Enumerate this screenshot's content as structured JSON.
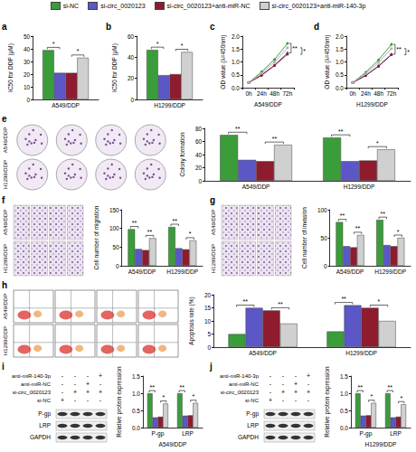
{
  "chart_data": [
    {
      "panel": "a",
      "type": "bar",
      "categories": [
        "A549/DDP"
      ],
      "ylabel": "IC50 for DDP (μM)",
      "ylim": [
        0,
        50
      ],
      "yticks": [
        0,
        10,
        20,
        30,
        40,
        50
      ],
      "grid": false,
      "series": [
        {
          "name": "si-NC",
          "color": "#3a9d3a",
          "values": [
            39
          ]
        },
        {
          "name": "si-circ_0020123",
          "color": "#5b57c6",
          "values": [
            21
          ]
        },
        {
          "name": "si-circ_0020123+anti-miR-NC",
          "color": "#8e1b2e",
          "values": [
            21
          ]
        },
        {
          "name": "si-circ_0020123+anti-miR-140-3p",
          "color": "#d0d0d0",
          "values": [
            33
          ]
        }
      ],
      "annotations": [
        {
          "text": "*",
          "category": "A549/DDP",
          "series": [
            "si-NC",
            "si-circ_0020123"
          ]
        },
        {
          "text": "*",
          "category": "A549/DDP",
          "series": [
            "si-circ_0020123+anti-miR-NC",
            "si-circ_0020123+anti-miR-140-3p"
          ]
        }
      ]
    },
    {
      "panel": "b",
      "type": "bar",
      "categories": [
        "H1299/DDP"
      ],
      "ylabel": "IC50 for DDP (μM)",
      "ylim": [
        0,
        60
      ],
      "yticks": [
        0,
        20,
        40,
        60
      ],
      "grid": false,
      "series": [
        {
          "name": "si-NC",
          "color": "#3a9d3a",
          "values": [
            47
          ]
        },
        {
          "name": "si-circ_0020123",
          "color": "#5b57c6",
          "values": [
            23
          ]
        },
        {
          "name": "si-circ_0020123+anti-miR-NC",
          "color": "#8e1b2e",
          "values": [
            24
          ]
        },
        {
          "name": "si-circ_0020123+anti-miR-140-3p",
          "color": "#d0d0d0",
          "values": [
            45
          ]
        }
      ],
      "annotations": [
        {
          "text": "*",
          "category": "H1299/DDP",
          "series": [
            "si-NC",
            "si-circ_0020123"
          ]
        },
        {
          "text": "*",
          "category": "H1299/DDP",
          "series": [
            "si-circ_0020123+anti-miR-NC",
            "si-circ_0020123+anti-miR-140-3p"
          ]
        }
      ]
    },
    {
      "panel": "c",
      "type": "line",
      "marker": "circle",
      "categories": [
        "0h",
        "24h",
        "48h",
        "72h"
      ],
      "xlabel": "A549/DDP",
      "ylabel": "OD value (λ=450nm)",
      "ylim": [
        0,
        2
      ],
      "yticks": [
        {
          "value": 0,
          "label": "0.0"
        },
        {
          "value": 0.5,
          "label": "0.5"
        },
        {
          "value": 1,
          "label": "1.0"
        },
        {
          "value": 1.5,
          "label": "1.5"
        },
        {
          "value": 2,
          "label": "2.0"
        }
      ],
      "grid": false,
      "series": [
        {
          "name": "si-NC",
          "color": "#3a9d3a",
          "values": [
            0.2,
            0.62,
            1.1,
            1.72
          ]
        },
        {
          "name": "si-circ_0020123",
          "color": "#5b57c6",
          "values": [
            0.2,
            0.5,
            0.88,
            1.35
          ]
        },
        {
          "name": "si-circ_0020123+anti-miR-NC",
          "color": "#8e1b2e",
          "values": [
            0.2,
            0.48,
            0.86,
            1.3
          ]
        },
        {
          "name": "si-circ_0020123+anti-miR-140-3p",
          "color": "#b0b0b0",
          "values": [
            0.2,
            0.56,
            1.0,
            1.55
          ]
        }
      ],
      "annotations": [
        {
          "text": "**",
          "category": "72h",
          "series": [
            "si-NC",
            "si-circ_0020123"
          ]
        },
        {
          "text": "*",
          "category": "72h",
          "series": [
            "si-circ_0020123+anti-miR-NC",
            "si-circ_0020123+anti-miR-140-3p"
          ]
        }
      ]
    },
    {
      "panel": "d",
      "type": "line",
      "marker": "circle",
      "categories": [
        "0h",
        "24h",
        "48h",
        "72h"
      ],
      "xlabel": "H1299/DDP",
      "ylabel": "OD value (λ=450nm)",
      "ylim": [
        0,
        2
      ],
      "yticks": [
        {
          "value": 0,
          "label": "0.0"
        },
        {
          "value": 0.5,
          "label": "0.5"
        },
        {
          "value": 1,
          "label": "1.0"
        },
        {
          "value": 1.5,
          "label": "1.5"
        },
        {
          "value": 2,
          "label": "2.0"
        }
      ],
      "grid": false,
      "series": [
        {
          "name": "si-NC",
          "color": "#3a9d3a",
          "values": [
            0.2,
            0.6,
            1.08,
            1.68
          ]
        },
        {
          "name": "si-circ_0020123",
          "color": "#5b57c6",
          "values": [
            0.2,
            0.48,
            0.85,
            1.3
          ]
        },
        {
          "name": "si-circ_0020123+anti-miR-NC",
          "color": "#8e1b2e",
          "values": [
            0.2,
            0.47,
            0.83,
            1.28
          ]
        },
        {
          "name": "si-circ_0020123+anti-miR-140-3p",
          "color": "#b0b0b0",
          "values": [
            0.2,
            0.55,
            0.98,
            1.52
          ]
        }
      ],
      "annotations": [
        {
          "text": "**",
          "category": "72h",
          "series": [
            "si-NC",
            "si-circ_0020123"
          ]
        },
        {
          "text": "*",
          "category": "72h",
          "series": [
            "si-circ_0020123+anti-miR-NC",
            "si-circ_0020123+anti-miR-140-3p"
          ]
        }
      ]
    },
    {
      "panel": "e",
      "type": "bar",
      "categories": [
        "A549/DDP",
        "H1299/DDP"
      ],
      "ylabel": "Colony formation",
      "ylim": [
        0,
        80
      ],
      "yticks": [
        0,
        20,
        40,
        60,
        80
      ],
      "grid": false,
      "series": [
        {
          "name": "si-NC",
          "color": "#3a9d3a",
          "values": [
            70,
            66
          ]
        },
        {
          "name": "si-circ_0020123",
          "color": "#5b57c6",
          "values": [
            32,
            30
          ]
        },
        {
          "name": "si-circ_0020123+anti-miR-NC",
          "color": "#8e1b2e",
          "values": [
            30,
            31
          ]
        },
        {
          "name": "si-circ_0020123+anti-miR-140-3p",
          "color": "#d0d0d0",
          "values": [
            55,
            48
          ]
        }
      ],
      "annotations": [
        {
          "text": "**",
          "category": "A549/DDP",
          "series": [
            "si-NC",
            "si-circ_0020123"
          ]
        },
        {
          "text": "**",
          "category": "A549/DDP",
          "series": [
            "si-circ_0020123+anti-miR-NC",
            "si-circ_0020123+anti-miR-140-3p"
          ]
        },
        {
          "text": "**",
          "category": "H1299/DDP",
          "series": [
            "si-NC",
            "si-circ_0020123"
          ]
        },
        {
          "text": "*",
          "category": "H1299/DDP",
          "series": [
            "si-circ_0020123+anti-miR-NC",
            "si-circ_0020123+anti-miR-140-3p"
          ]
        }
      ]
    },
    {
      "panel": "f",
      "type": "bar",
      "categories": [
        "A549/DDP",
        "H1299/DDP"
      ],
      "ylabel": "Cell number of migration",
      "ylim": [
        0,
        150
      ],
      "yticks": [
        0,
        50,
        100,
        150
      ],
      "grid": false,
      "series": [
        {
          "name": "si-NC",
          "color": "#3a9d3a",
          "values": [
            98,
            104
          ]
        },
        {
          "name": "si-circ_0020123",
          "color": "#5b57c6",
          "values": [
            45,
            47
          ]
        },
        {
          "name": "si-circ_0020123+anti-miR-NC",
          "color": "#8e1b2e",
          "values": [
            42,
            44
          ]
        },
        {
          "name": "si-circ_0020123+anti-miR-140-3p",
          "color": "#d0d0d0",
          "values": [
            74,
            68
          ]
        }
      ],
      "annotations": [
        {
          "text": "**",
          "category": "A549/DDP",
          "series": [
            "si-NC",
            "si-circ_0020123"
          ]
        },
        {
          "text": "**",
          "category": "A549/DDP",
          "series": [
            "si-circ_0020123+anti-miR-NC",
            "si-circ_0020123+anti-miR-140-3p"
          ]
        },
        {
          "text": "**",
          "category": "H1299/DDP",
          "series": [
            "si-NC",
            "si-circ_0020123"
          ]
        },
        {
          "text": "*",
          "category": "H1299/DDP",
          "series": [
            "si-circ_0020123+anti-miR-NC",
            "si-circ_0020123+anti-miR-140-3p"
          ]
        }
      ]
    },
    {
      "panel": "g",
      "type": "bar",
      "categories": [
        "A549/DDP",
        "H1299/DDP"
      ],
      "ylabel": "Cell number of invasion",
      "ylim": [
        0,
        100
      ],
      "yticks": [
        0,
        50,
        100
      ],
      "grid": false,
      "series": [
        {
          "name": "si-NC",
          "color": "#3a9d3a",
          "values": [
            78,
            82
          ]
        },
        {
          "name": "si-circ_0020123",
          "color": "#5b57c6",
          "values": [
            35,
            37
          ]
        },
        {
          "name": "si-circ_0020123+anti-miR-NC",
          "color": "#8e1b2e",
          "values": [
            33,
            35
          ]
        },
        {
          "name": "si-circ_0020123+anti-miR-140-3p",
          "color": "#d0d0d0",
          "values": [
            55,
            50
          ]
        }
      ],
      "annotations": [
        {
          "text": "**",
          "category": "A549/DDP",
          "series": [
            "si-NC",
            "si-circ_0020123"
          ]
        },
        {
          "text": "**",
          "category": "A549/DDP",
          "series": [
            "si-circ_0020123+anti-miR-NC",
            "si-circ_0020123+anti-miR-140-3p"
          ]
        },
        {
          "text": "**",
          "category": "H1299/DDP",
          "series": [
            "si-NC",
            "si-circ_0020123"
          ]
        },
        {
          "text": "*",
          "category": "H1299/DDP",
          "series": [
            "si-circ_0020123+anti-miR-NC",
            "si-circ_0020123+anti-miR-140-3p"
          ]
        }
      ]
    },
    {
      "panel": "h",
      "type": "bar",
      "categories": [
        "A549/DDP",
        "H1299/DDP"
      ],
      "ylabel": "Apoptosis rate (%)",
      "ylim": [
        0,
        20
      ],
      "yticks": [
        0,
        5,
        10,
        15,
        20
      ],
      "grid": false,
      "series": [
        {
          "name": "si-NC",
          "color": "#3a9d3a",
          "values": [
            5,
            6
          ]
        },
        {
          "name": "si-circ_0020123",
          "color": "#5b57c6",
          "values": [
            15,
            16
          ]
        },
        {
          "name": "si-circ_0020123+anti-miR-NC",
          "color": "#8e1b2e",
          "values": [
            14,
            15
          ]
        },
        {
          "name": "si-circ_0020123+anti-miR-140-3p",
          "color": "#d0d0d0",
          "values": [
            9,
            10
          ]
        }
      ],
      "annotations": [
        {
          "text": "**",
          "category": "A549/DDP",
          "series": [
            "si-NC",
            "si-circ_0020123"
          ]
        },
        {
          "text": "**",
          "category": "A549/DDP",
          "series": [
            "si-circ_0020123+anti-miR-NC",
            "si-circ_0020123+anti-miR-140-3p"
          ]
        },
        {
          "text": "**",
          "category": "H1299/DDP",
          "series": [
            "si-NC",
            "si-circ_0020123"
          ]
        },
        {
          "text": "*",
          "category": "H1299/DDP",
          "series": [
            "si-circ_0020123+anti-miR-NC",
            "si-circ_0020123+anti-miR-140-3p"
          ]
        }
      ]
    },
    {
      "panel": "i",
      "type": "bar",
      "categories": [
        "P-gp",
        "LRP"
      ],
      "xlabel": "A549/DDP",
      "ylabel": "Relative protein expression",
      "ylim": [
        0,
        1.5
      ],
      "yticks": [
        {
          "value": 0,
          "label": "0.0"
        },
        {
          "value": 0.5,
          "label": "0.5"
        },
        {
          "value": 1,
          "label": "1.0"
        },
        {
          "value": 1.5,
          "label": "1.5"
        }
      ],
      "grid": false,
      "series": [
        {
          "name": "si-NC",
          "color": "#3a9d3a",
          "values": [
            1,
            1
          ]
        },
        {
          "name": "si-circ_0020123",
          "color": "#5b57c6",
          "values": [
            0.3,
            0.35
          ]
        },
        {
          "name": "si-circ_0020123+anti-miR-NC",
          "color": "#8e1b2e",
          "values": [
            0.32,
            0.36
          ]
        },
        {
          "name": "si-circ_0020123+anti-miR-140-3p",
          "color": "#d0d0d0",
          "values": [
            0.7,
            0.72
          ]
        }
      ],
      "annotations": [
        {
          "text": "**",
          "category": "P-gp",
          "series": [
            "si-NC",
            "si-circ_0020123"
          ]
        },
        {
          "text": "*",
          "category": "P-gp",
          "series": [
            "si-circ_0020123+anti-miR-NC",
            "si-circ_0020123+anti-miR-140-3p"
          ]
        },
        {
          "text": "**",
          "category": "LRP",
          "series": [
            "si-NC",
            "si-circ_0020123"
          ]
        },
        {
          "text": "*",
          "category": "LRP",
          "series": [
            "si-circ_0020123+anti-miR-NC",
            "si-circ_0020123+anti-miR-140-3p"
          ]
        }
      ]
    },
    {
      "panel": "j",
      "type": "bar",
      "categories": [
        "P-gp",
        "LRP"
      ],
      "xlabel": "H1299/DDP",
      "ylabel": "Relative protein expression",
      "ylim": [
        0,
        1.5
      ],
      "yticks": [
        {
          "value": 0,
          "label": "0.0"
        },
        {
          "value": 0.5,
          "label": "0.5"
        },
        {
          "value": 1,
          "label": "1.0"
        },
        {
          "value": 1.5,
          "label": "1.5"
        }
      ],
      "grid": false,
      "series": [
        {
          "name": "si-NC",
          "color": "#3a9d3a",
          "values": [
            1,
            1
          ]
        },
        {
          "name": "si-circ_0020123",
          "color": "#5b57c6",
          "values": [
            0.35,
            0.3
          ]
        },
        {
          "name": "si-circ_0020123+anti-miR-NC",
          "color": "#8e1b2e",
          "values": [
            0.36,
            0.32
          ]
        },
        {
          "name": "si-circ_0020123+anti-miR-140-3p",
          "color": "#d0d0d0",
          "values": [
            0.72,
            0.68
          ]
        }
      ],
      "annotations": [
        {
          "text": "**",
          "category": "P-gp",
          "series": [
            "si-NC",
            "si-circ_0020123"
          ]
        },
        {
          "text": "*",
          "category": "P-gp",
          "series": [
            "si-circ_0020123+anti-miR-NC",
            "si-circ_0020123+anti-miR-140-3p"
          ]
        },
        {
          "text": "**",
          "category": "LRP",
          "series": [
            "si-NC",
            "si-circ_0020123"
          ]
        },
        {
          "text": "*",
          "category": "LRP",
          "series": [
            "si-circ_0020123+anti-miR-NC",
            "si-circ_0020123+anti-miR-140-3p"
          ]
        }
      ]
    }
  ],
  "image_panels": [
    {
      "panel": "e",
      "kind": "colonies",
      "rows": [
        "A549/DDP",
        "H1299/DDP"
      ]
    },
    {
      "panel": "f",
      "kind": "transwell",
      "rows": [
        "A549/DDP",
        "H1299/DDP"
      ]
    },
    {
      "panel": "g",
      "kind": "transwell",
      "rows": [
        "A549/DDP",
        "H1299/DDP"
      ]
    },
    {
      "panel": "h",
      "kind": "flow",
      "rows": [
        "A549/DDP",
        "H1299/DDP"
      ]
    },
    {
      "panel": "i",
      "kind": "blot",
      "treatments": [
        {
          "label": "anti-miR-140-3p",
          "marks": [
            "-",
            "-",
            "-",
            "+"
          ]
        },
        {
          "label": "anti-miR-NC",
          "marks": [
            "-",
            "-",
            "+",
            "-"
          ]
        },
        {
          "label": "si-circ_0020123",
          "marks": [
            "-",
            "+",
            "+",
            "+"
          ]
        },
        {
          "label": "si-NC",
          "marks": [
            "+",
            "-",
            "-",
            "-"
          ]
        }
      ],
      "bands": [
        "P-gp",
        "LRP",
        "GAPDH"
      ]
    },
    {
      "panel": "j",
      "kind": "blot",
      "treatments": [
        {
          "label": "anti-miR-140-3p",
          "marks": [
            "-",
            "-",
            "-",
            "+"
          ]
        },
        {
          "label": "anti-miR-NC",
          "marks": [
            "-",
            "-",
            "+",
            "-"
          ]
        },
        {
          "label": "si-circ_0020123",
          "marks": [
            "-",
            "+",
            "+",
            "+"
          ]
        },
        {
          "label": "si-NC",
          "marks": [
            "+",
            "-",
            "-",
            "-"
          ]
        }
      ],
      "bands": [
        "P-gp",
        "LRP",
        "GAPDH"
      ]
    }
  ]
}
